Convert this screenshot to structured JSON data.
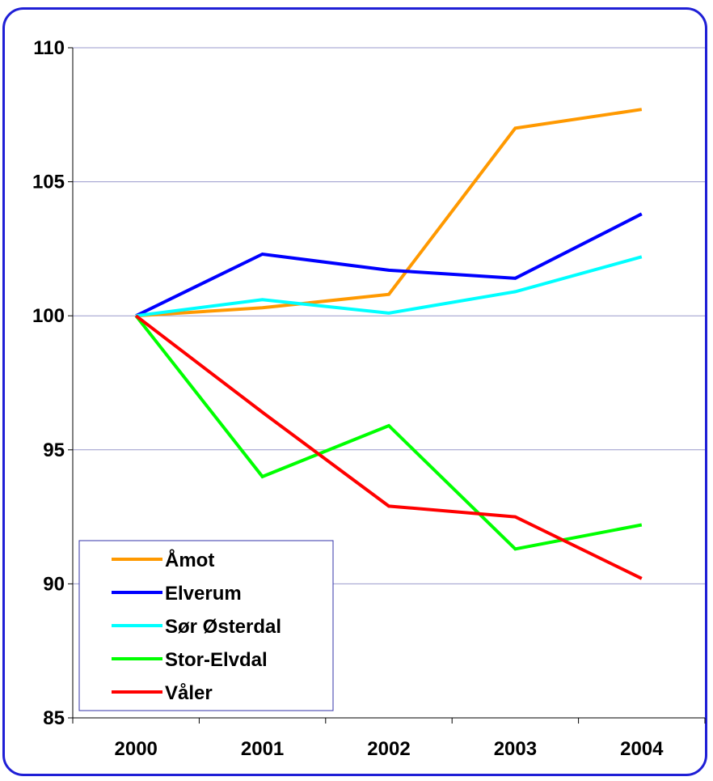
{
  "chart_data": {
    "type": "line",
    "title": "",
    "xlabel": "",
    "ylabel": "",
    "x": [
      "2000",
      "2001",
      "2002",
      "2003",
      "2004"
    ],
    "ylim": [
      85,
      110
    ],
    "yticks": [
      85,
      90,
      95,
      100,
      105,
      110
    ],
    "grid": true,
    "legend_position": "bottom-left",
    "series": [
      {
        "name": "Åmot",
        "color": "#ff9900",
        "values": [
          100,
          100.3,
          100.8,
          107.0,
          107.7
        ]
      },
      {
        "name": "Elverum",
        "color": "#0000ff",
        "values": [
          100,
          102.3,
          101.7,
          101.4,
          103.8
        ]
      },
      {
        "name": "Sør Østerdal",
        "color": "#00ffff",
        "values": [
          100,
          100.6,
          100.1,
          100.9,
          102.2
        ]
      },
      {
        "name": "Stor-Elvdal",
        "color": "#00ff00",
        "values": [
          100,
          94.0,
          95.9,
          91.3,
          92.2
        ]
      },
      {
        "name": "Våler",
        "color": "#ff0000",
        "values": [
          100,
          96.4,
          92.9,
          92.5,
          90.2
        ]
      }
    ]
  },
  "colors": {
    "frame_border": "#1f1fd6",
    "gridline": "#9999cc",
    "legend_border": "#3333aa"
  }
}
